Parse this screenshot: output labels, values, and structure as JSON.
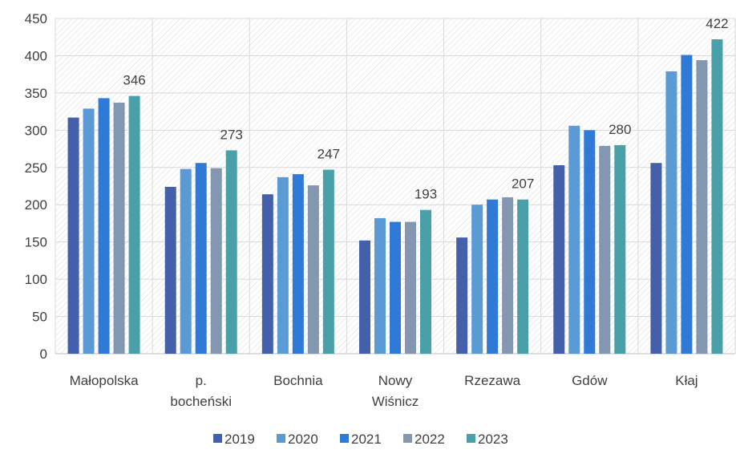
{
  "chart_data": {
    "type": "bar",
    "categories": [
      [
        "Małopolska"
      ],
      [
        "p.",
        "bocheński"
      ],
      [
        "Bochnia"
      ],
      [
        "Nowy",
        "Wiśnicz"
      ],
      [
        "Rzezawa"
      ],
      [
        "Gdów"
      ],
      [
        "Kłaj"
      ]
    ],
    "series": [
      {
        "name": "2019",
        "color": "#4460AA",
        "values": [
          317,
          224,
          214,
          152,
          156,
          253,
          256
        ]
      },
      {
        "name": "2020",
        "color": "#5B9BD5",
        "values": [
          329,
          248,
          237,
          182,
          200,
          306,
          379
        ]
      },
      {
        "name": "2021",
        "color": "#2E7AD6",
        "values": [
          343,
          256,
          241,
          177,
          207,
          300,
          401
        ]
      },
      {
        "name": "2022",
        "color": "#8497B0",
        "values": [
          337,
          249,
          226,
          177,
          210,
          279,
          394
        ]
      },
      {
        "name": "2023",
        "color": "#4AA0A8",
        "values": [
          346,
          273,
          247,
          193,
          207,
          280,
          422
        ]
      }
    ],
    "data_labels": {
      "series": "2023",
      "values": [
        "346",
        "273",
        "247",
        "193",
        "207",
        "280",
        "422"
      ]
    },
    "ylim": [
      0,
      450
    ],
    "yticks": [
      "0",
      "50",
      "100",
      "150",
      "200",
      "250",
      "300",
      "350",
      "400",
      "450"
    ],
    "grid": true,
    "legend_position": "bottom",
    "plot_background": "hatched"
  }
}
